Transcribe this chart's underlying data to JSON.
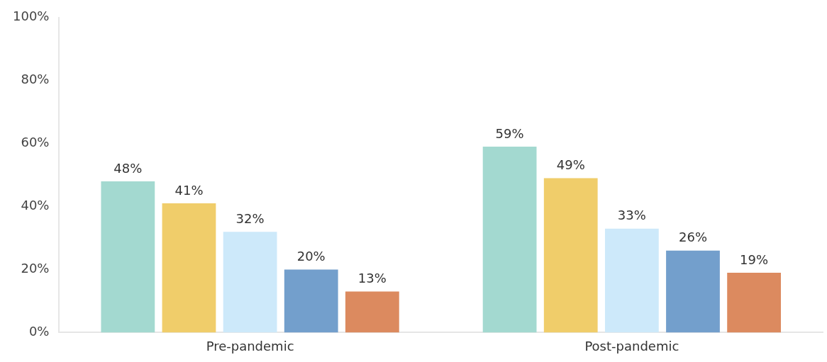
{
  "chart_data": {
    "type": "bar",
    "categories": [
      "Pre-pandemic",
      "Post-pandemic"
    ],
    "series": [
      {
        "color": "#a3d9d0",
        "values": [
          48,
          59
        ],
        "value_labels": [
          "48%",
          "59%"
        ]
      },
      {
        "color": "#f0cd6a",
        "values": [
          41,
          49
        ],
        "value_labels": [
          "41%",
          "49%"
        ]
      },
      {
        "color": "#cde9fa",
        "values": [
          32,
          33
        ],
        "value_labels": [
          "32%",
          "33%"
        ]
      },
      {
        "color": "#739fcc",
        "values": [
          20,
          26
        ],
        "value_labels": [
          "20%",
          "26%"
        ]
      },
      {
        "color": "#dc8a5f",
        "values": [
          13,
          19
        ],
        "value_labels": [
          "13%",
          "19%"
        ]
      }
    ],
    "ylim": [
      0,
      100
    ],
    "yticks": [
      {
        "value": 0,
        "label": "0%"
      },
      {
        "value": 20,
        "label": "20%"
      },
      {
        "value": 40,
        "label": "40%"
      },
      {
        "value": 60,
        "label": "60%"
      },
      {
        "value": 80,
        "label": "80%"
      },
      {
        "value": 100,
        "label": "100%"
      }
    ],
    "grid": false,
    "legend": false
  }
}
